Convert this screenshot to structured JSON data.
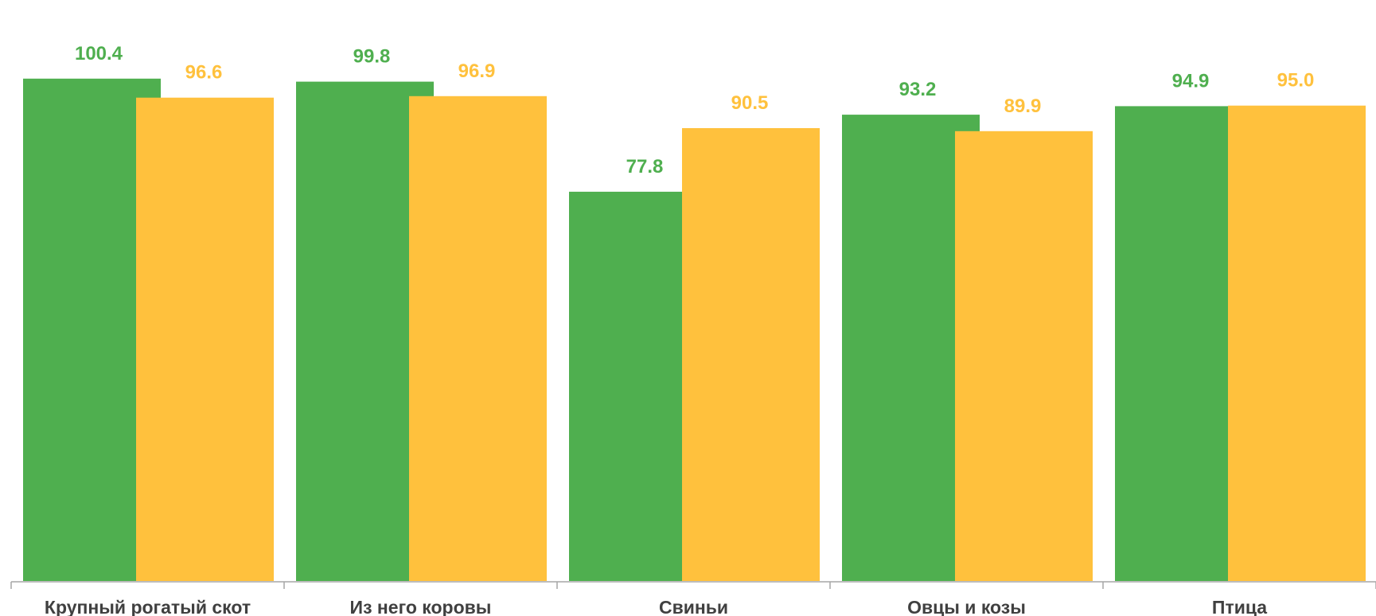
{
  "chart_data": {
    "type": "bar",
    "categories": [
      "Крупный рогатый скот",
      "Из него коровы",
      "Свиньи",
      "Овцы и козы",
      "Птица"
    ],
    "series": [
      {
        "values": [
          100.4,
          99.8,
          77.8,
          93.2,
          94.9
        ],
        "color": "#4FAF4F"
      },
      {
        "values": [
          96.6,
          96.9,
          90.5,
          89.9,
          95.0
        ],
        "color": "#FFC13D"
      }
    ],
    "ylim": [
      0,
      105
    ],
    "grid": false,
    "legend": "none",
    "value_labels": true,
    "axis_color": "#A6A6A6",
    "label_color": "#404040"
  }
}
